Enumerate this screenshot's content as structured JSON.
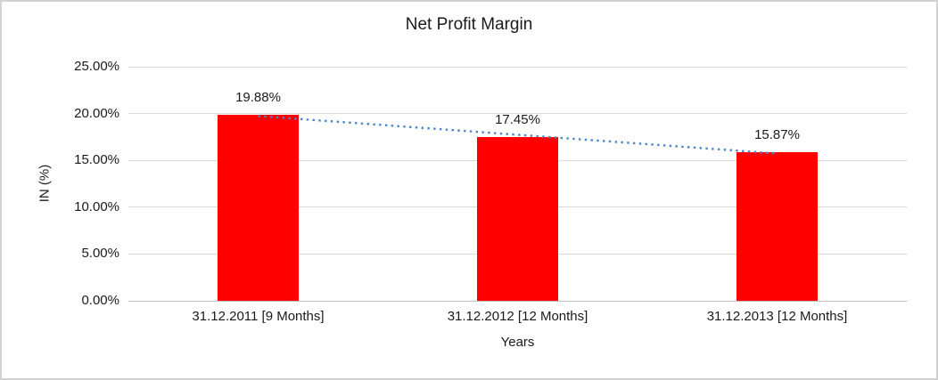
{
  "chart_data": {
    "type": "bar",
    "title": "Net Profit Margin",
    "xlabel": "Years",
    "ylabel": "IN (%)",
    "categories": [
      "31.12.2011 [9 Months]",
      "31.12.2012 [12 Months]",
      "31.12.2013 [12 Months]"
    ],
    "values": [
      19.88,
      17.45,
      15.87
    ],
    "data_labels": [
      "19.88%",
      "17.45%",
      "15.87%"
    ],
    "ylim": [
      0,
      25
    ],
    "y_tick_values": [
      0,
      5,
      10,
      15,
      20,
      25
    ],
    "y_tick_labels": [
      "0.00%",
      "5.00%",
      "10.00%",
      "15.00%",
      "20.00%",
      "25.00%"
    ],
    "grid": true,
    "legend": "none",
    "bar_color": "#ff0000",
    "trendline": {
      "type": "linear",
      "style": "dotted",
      "color": "#4a86c8"
    },
    "gridline_color": "#d9d9d9",
    "axis_line_color": "#c0c0c0",
    "frame_border_color": "#d2d2d2",
    "text_color": "#1a1a1a"
  }
}
